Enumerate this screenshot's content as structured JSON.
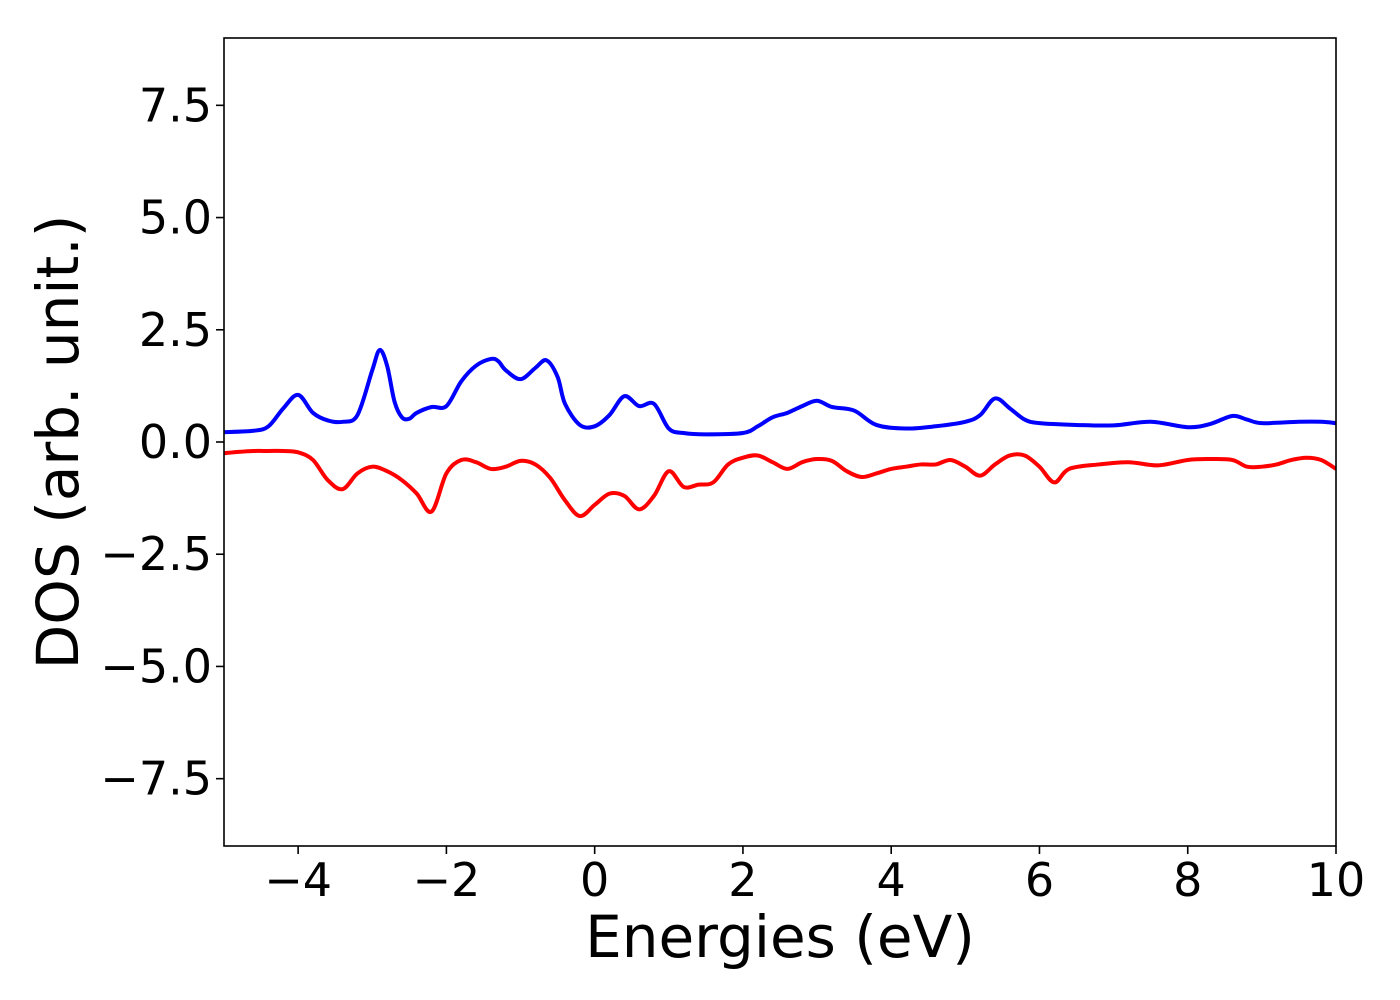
{
  "chart_data": {
    "type": "line",
    "title": "",
    "xlabel": "Energies (eV)",
    "ylabel": "DOS (arb. unit.)",
    "xlim": [
      -5,
      10
    ],
    "ylim": [
      -9.0,
      9.0
    ],
    "xticks": [
      -4,
      -2,
      0,
      2,
      4,
      6,
      8,
      10
    ],
    "xtick_labels": [
      "−4",
      "−2",
      "0",
      "2",
      "4",
      "6",
      "8",
      "10"
    ],
    "yticks": [
      7.5,
      5.0,
      2.5,
      0.0,
      -2.5,
      -5.0,
      -7.5
    ],
    "ytick_labels": [
      "7.5",
      "5.0",
      "2.5",
      "0.0",
      "−2.5",
      "−5.0",
      "−7.5"
    ],
    "grid": false,
    "legend": "none",
    "series": [
      {
        "color": "#0000ff",
        "x": [
          -5.0,
          -4.6,
          -4.4,
          -4.2,
          -4.0,
          -3.8,
          -3.6,
          -3.4,
          -3.2,
          -3.0,
          -2.9,
          -2.8,
          -2.7,
          -2.6,
          -2.5,
          -2.4,
          -2.2,
          -2.0,
          -1.8,
          -1.6,
          -1.4,
          -1.3,
          -1.2,
          -1.0,
          -0.8,
          -0.65,
          -0.5,
          -0.4,
          -0.2,
          0.0,
          0.2,
          0.4,
          0.6,
          0.8,
          1.0,
          1.2,
          1.5,
          2.0,
          2.2,
          2.4,
          2.6,
          2.8,
          3.0,
          3.2,
          3.5,
          3.8,
          4.2,
          4.6,
          5.0,
          5.2,
          5.4,
          5.6,
          5.8,
          6.0,
          6.5,
          7.0,
          7.5,
          8.0,
          8.3,
          8.6,
          8.8,
          9.0,
          9.5,
          9.8,
          10.0
        ],
        "values": [
          0.22,
          0.25,
          0.35,
          0.75,
          1.05,
          0.65,
          0.48,
          0.45,
          0.6,
          1.6,
          2.05,
          1.7,
          0.9,
          0.55,
          0.52,
          0.65,
          0.78,
          0.8,
          1.35,
          1.7,
          1.85,
          1.8,
          1.6,
          1.4,
          1.65,
          1.82,
          1.45,
          0.85,
          0.38,
          0.35,
          0.6,
          1.02,
          0.8,
          0.85,
          0.3,
          0.2,
          0.17,
          0.2,
          0.35,
          0.55,
          0.65,
          0.8,
          0.92,
          0.78,
          0.7,
          0.38,
          0.3,
          0.35,
          0.45,
          0.6,
          0.97,
          0.75,
          0.5,
          0.42,
          0.38,
          0.37,
          0.45,
          0.33,
          0.4,
          0.58,
          0.5,
          0.42,
          0.45,
          0.45,
          0.42
        ]
      },
      {
        "color": "#ff0000",
        "x": [
          -5.0,
          -4.8,
          -4.6,
          -4.4,
          -4.2,
          -4.0,
          -3.8,
          -3.6,
          -3.4,
          -3.2,
          -3.0,
          -2.8,
          -2.6,
          -2.4,
          -2.2,
          -2.0,
          -1.8,
          -1.6,
          -1.4,
          -1.2,
          -1.0,
          -0.8,
          -0.6,
          -0.4,
          -0.2,
          0.0,
          0.2,
          0.4,
          0.6,
          0.8,
          1.0,
          1.2,
          1.4,
          1.6,
          1.8,
          2.0,
          2.2,
          2.4,
          2.6,
          2.8,
          3.0,
          3.2,
          3.4,
          3.6,
          3.8,
          4.0,
          4.2,
          4.4,
          4.6,
          4.8,
          5.0,
          5.2,
          5.4,
          5.6,
          5.8,
          6.0,
          6.2,
          6.4,
          6.8,
          7.2,
          7.6,
          8.0,
          8.3,
          8.6,
          8.8,
          9.0,
          9.2,
          9.4,
          9.6,
          9.8,
          10.0
        ],
        "values": [
          -0.25,
          -0.22,
          -0.2,
          -0.2,
          -0.2,
          -0.23,
          -0.4,
          -0.85,
          -1.05,
          -0.7,
          -0.55,
          -0.65,
          -0.85,
          -1.15,
          -1.55,
          -0.7,
          -0.4,
          -0.45,
          -0.6,
          -0.55,
          -0.42,
          -0.5,
          -0.8,
          -1.3,
          -1.65,
          -1.4,
          -1.15,
          -1.2,
          -1.5,
          -1.2,
          -0.65,
          -1.0,
          -0.95,
          -0.9,
          -0.5,
          -0.35,
          -0.3,
          -0.45,
          -0.6,
          -0.45,
          -0.38,
          -0.42,
          -0.65,
          -0.78,
          -0.7,
          -0.6,
          -0.55,
          -0.5,
          -0.5,
          -0.4,
          -0.55,
          -0.75,
          -0.5,
          -0.3,
          -0.3,
          -0.55,
          -0.9,
          -0.6,
          -0.5,
          -0.45,
          -0.52,
          -0.4,
          -0.38,
          -0.4,
          -0.55,
          -0.55,
          -0.5,
          -0.4,
          -0.35,
          -0.4,
          -0.6
        ]
      }
    ]
  }
}
